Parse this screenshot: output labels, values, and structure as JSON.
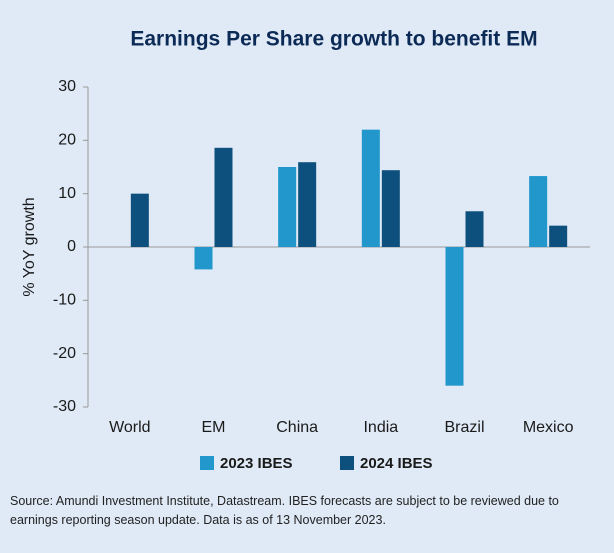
{
  "chart_data": {
    "type": "bar",
    "title": "Earnings Per Share growth to benefit EM",
    "ylabel": "% YoY growth",
    "categories": [
      "World",
      "EM",
      "China",
      "India",
      "Brazil",
      "Mexico"
    ],
    "series": [
      {
        "name": "2023 IBES",
        "color": "#2197cb",
        "values": [
          0,
          -4.2,
          15,
          22,
          -26,
          13.3
        ]
      },
      {
        "name": "2024 IBES",
        "color": "#0d4f7d",
        "values": [
          10,
          18.6,
          15.9,
          14.4,
          6.7,
          4
        ]
      }
    ],
    "ylim": [
      -30,
      30
    ],
    "yticks": [
      -30,
      -20,
      -10,
      0,
      10,
      20,
      30
    ],
    "grid": false,
    "legend": "bottom",
    "note": "Source: Amundi Investment Institute, Datastream. IBES forecasts are subject to be reviewed due to earnings reporting season update. Data is as of 13 November 2023."
  }
}
